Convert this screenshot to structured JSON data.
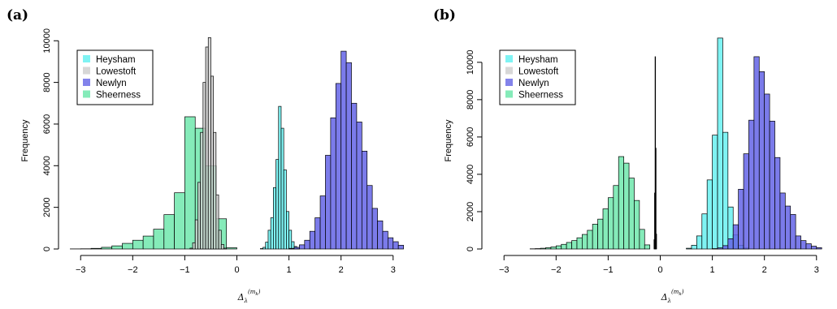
{
  "figure": {
    "panel_labels": [
      "(a)",
      "(b)"
    ]
  },
  "chart_data": [
    {
      "panel": "(a)",
      "type": "bar",
      "subtype": "histogram",
      "ylabel": "Frequency",
      "xlabel": "Δ",
      "xlabel_sub": "λ",
      "xlabel_sup": "(m",
      "xlabel_sup_sub": "k",
      "xlabel_sup_end": ")",
      "xlim": [
        -3.3,
        3.3
      ],
      "ylim": [
        0,
        10400
      ],
      "xticks": [
        -3,
        -2,
        -1,
        0,
        1,
        2,
        3
      ],
      "xtick_labels": [
        "−3",
        "−2",
        "−1",
        "0",
        "1",
        "2",
        "3"
      ],
      "yticks": [
        0,
        2000,
        4000,
        6000,
        8000,
        10000
      ],
      "ytick_labels": [
        "0",
        "2000",
        "4000",
        "6000",
        "8000",
        "10000"
      ],
      "legend_placement": "top-left",
      "series": [
        {
          "name": "Sheerness",
          "color": "#66E6A7",
          "bin_width": 0.2,
          "bins": [
            [
              -3.2,
              5
            ],
            [
              -3.0,
              10
            ],
            [
              -2.8,
              30
            ],
            [
              -2.6,
              80
            ],
            [
              -2.4,
              150
            ],
            [
              -2.2,
              270
            ],
            [
              -2.0,
              420
            ],
            [
              -1.8,
              620
            ],
            [
              -1.6,
              950
            ],
            [
              -1.4,
              1650
            ],
            [
              -1.2,
              2700
            ],
            [
              -1.0,
              6350
            ],
            [
              -0.8,
              5800
            ],
            [
              -0.6,
              4000
            ],
            [
              -0.4,
              1450
            ],
            [
              -0.2,
              60
            ]
          ]
        },
        {
          "name": "Lowestoft",
          "color": "#CDCDCD",
          "bin_width": 0.05,
          "bins": [
            [
              -0.9,
              40
            ],
            [
              -0.85,
              300
            ],
            [
              -0.8,
              1400
            ],
            [
              -0.75,
              3200
            ],
            [
              -0.7,
              5600
            ],
            [
              -0.65,
              8000
            ],
            [
              -0.6,
              9700
            ],
            [
              -0.55,
              10150
            ],
            [
              -0.5,
              8300
            ],
            [
              -0.45,
              5600
            ],
            [
              -0.4,
              2600
            ],
            [
              -0.35,
              900
            ],
            [
              -0.3,
              220
            ],
            [
              -0.25,
              40
            ]
          ]
        },
        {
          "name": "Heysham",
          "color": "#5FF0F0",
          "bin_width": 0.05,
          "bins": [
            [
              0.45,
              20
            ],
            [
              0.5,
              80
            ],
            [
              0.55,
              330
            ],
            [
              0.6,
              900
            ],
            [
              0.65,
              1500
            ],
            [
              0.7,
              2950
            ],
            [
              0.75,
              4300
            ],
            [
              0.8,
              6850
            ],
            [
              0.85,
              5800
            ],
            [
              0.9,
              3800
            ],
            [
              0.95,
              1800
            ],
            [
              1.0,
              900
            ],
            [
              1.05,
              350
            ],
            [
              1.1,
              120
            ],
            [
              1.15,
              30
            ]
          ]
        },
        {
          "name": "Newlyn",
          "color": "#6464E6",
          "bin_width": 0.1,
          "bins": [
            [
              1.0,
              30
            ],
            [
              1.1,
              80
            ],
            [
              1.2,
              200
            ],
            [
              1.3,
              420
            ],
            [
              1.4,
              850
            ],
            [
              1.5,
              1500
            ],
            [
              1.6,
              2550
            ],
            [
              1.7,
              4500
            ],
            [
              1.8,
              6300
            ],
            [
              1.9,
              7950
            ],
            [
              2.0,
              9500
            ],
            [
              2.1,
              8950
            ],
            [
              2.2,
              7000
            ],
            [
              2.3,
              6100
            ],
            [
              2.4,
              4700
            ],
            [
              2.5,
              3050
            ],
            [
              2.6,
              1950
            ],
            [
              2.7,
              1350
            ],
            [
              2.8,
              850
            ],
            [
              2.9,
              540
            ],
            [
              3.0,
              350
            ],
            [
              3.1,
              180
            ]
          ]
        }
      ]
    },
    {
      "panel": "(b)",
      "type": "bar",
      "subtype": "histogram",
      "ylabel": "Frequency",
      "xlabel": "Δ",
      "xlabel_sub": "λ",
      "xlabel_sup": "(m",
      "xlabel_sup_sub": "k",
      "xlabel_sup_end": ")",
      "xlim": [
        -3.3,
        3.3
      ],
      "ylim": [
        0,
        11600
      ],
      "xticks": [
        -3,
        -2,
        -1,
        0,
        1,
        2,
        3
      ],
      "xtick_labels": [
        "−3",
        "−2",
        "−1",
        "0",
        "1",
        "2",
        "3"
      ],
      "yticks": [
        0,
        2000,
        4000,
        6000,
        8000,
        10000
      ],
      "ytick_labels": [
        "0",
        "2000",
        "4000",
        "6000",
        "8000",
        "10000"
      ],
      "legend_placement": "top-left",
      "series": [
        {
          "name": "Sheerness",
          "color": "#66E6A7",
          "bin_width": 0.1,
          "bins": [
            [
              -2.5,
              10
            ],
            [
              -2.4,
              20
            ],
            [
              -2.3,
              40
            ],
            [
              -2.2,
              70
            ],
            [
              -2.1,
              110
            ],
            [
              -2.0,
              170
            ],
            [
              -1.9,
              250
            ],
            [
              -1.8,
              350
            ],
            [
              -1.7,
              450
            ],
            [
              -1.6,
              600
            ],
            [
              -1.5,
              780
            ],
            [
              -1.4,
              1000
            ],
            [
              -1.3,
              1330
            ],
            [
              -1.2,
              1600
            ],
            [
              -1.1,
              2150
            ],
            [
              -1.0,
              2750
            ],
            [
              -0.9,
              3400
            ],
            [
              -0.8,
              4950
            ],
            [
              -0.7,
              4600
            ],
            [
              -0.6,
              3800
            ],
            [
              -0.5,
              2600
            ],
            [
              -0.4,
              1050
            ],
            [
              -0.3,
              220
            ]
          ]
        },
        {
          "name": "Lowestoft",
          "color": "#CDCDCD",
          "bin_width": 0.01,
          "bins": [
            [
              -0.12,
              500
            ],
            [
              -0.11,
              3000
            ],
            [
              -0.1,
              10300
            ],
            [
              -0.09,
              5400
            ],
            [
              -0.08,
              800
            ]
          ]
        },
        {
          "name": "Heysham",
          "color": "#5FF0F0",
          "bin_width": 0.1,
          "bins": [
            [
              0.5,
              40
            ],
            [
              0.6,
              200
            ],
            [
              0.7,
              700
            ],
            [
              0.8,
              1880
            ],
            [
              0.9,
              3700
            ],
            [
              1.0,
              6100
            ],
            [
              1.1,
              11300
            ],
            [
              1.2,
              6250
            ],
            [
              1.3,
              2250
            ],
            [
              1.4,
              750
            ],
            [
              1.5,
              200
            ],
            [
              1.6,
              50
            ]
          ]
        },
        {
          "name": "Newlyn",
          "color": "#6464E6",
          "bin_width": 0.1,
          "bins": [
            [
              1.0,
              20
            ],
            [
              1.1,
              60
            ],
            [
              1.2,
              180
            ],
            [
              1.3,
              550
            ],
            [
              1.4,
              1300
            ],
            [
              1.5,
              3200
            ],
            [
              1.6,
              5100
            ],
            [
              1.7,
              6900
            ],
            [
              1.8,
              10300
            ],
            [
              1.9,
              9500
            ],
            [
              2.0,
              8300
            ],
            [
              2.1,
              6850
            ],
            [
              2.2,
              4900
            ],
            [
              2.3,
              3000
            ],
            [
              2.4,
              2300
            ],
            [
              2.5,
              1850
            ],
            [
              2.6,
              700
            ],
            [
              2.7,
              450
            ],
            [
              2.8,
              280
            ],
            [
              2.9,
              150
            ],
            [
              3.0,
              70
            ]
          ]
        }
      ]
    }
  ]
}
